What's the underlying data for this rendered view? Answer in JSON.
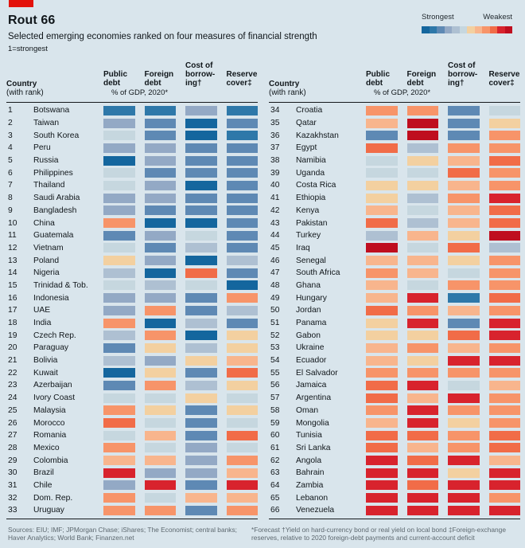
{
  "header": {
    "title": "Rout 66",
    "subtitle": "Selected emerging economies ranked on four measures of financial strength",
    "scale_note": "1=strongest",
    "legend_strong": "Strongest",
    "legend_weak": "Weakest"
  },
  "table_header": {
    "country_label": "Country",
    "country_sub": "(with rank)",
    "col_public": "Public\ndebt",
    "col_foreign": "Foreign\ndebt",
    "col_borrowing": "Cost of\nborrow-\ning†",
    "col_reserve": "Reserve\ncover‡",
    "gdp_note": "% of GDP, 2020*"
  },
  "colors": {
    "background": "#d9e5ec",
    "tab_red": "#e3120b",
    "rule_dark": "#15191c",
    "footer_text": "#5d686f",
    "palette": {
      "b1": "#14669e",
      "b2": "#2e78a9",
      "b3": "#5e89b4",
      "b4": "#93a9c5",
      "b5": "#aec0d2",
      "b6": "#c6d7df",
      "r6": "#f3d0a0",
      "r5": "#f8b58d",
      "r4": "#f79469",
      "r3": "#f16c48",
      "r2": "#d8232d",
      "r1": "#bf0e1f"
    },
    "legend_order": [
      "b1",
      "b2",
      "b3",
      "b4",
      "b5",
      "b6",
      "r6",
      "r5",
      "r4",
      "r3",
      "r2",
      "r1"
    ]
  },
  "chart_data": {
    "type": "heatmap",
    "title": "Rout 66",
    "subtitle": "Selected emerging economies ranked on four measures of financial strength",
    "scale_note": "1=strongest; colors are ordinal strength buckets from b1 (strongest, dark blue) to r1 (weakest, dark red)",
    "measures": [
      "Public debt (% of GDP, 2020*)",
      "Foreign debt (% of GDP, 2020*)",
      "Cost of borrowing†",
      "Reserve cover‡"
    ],
    "rows": [
      {
        "rank": 1,
        "country": "Botswana",
        "cells": [
          "b2",
          "b2",
          "b4",
          "b2"
        ]
      },
      {
        "rank": 2,
        "country": "Taiwan",
        "cells": [
          "b4",
          "b3",
          "b1",
          "b3"
        ]
      },
      {
        "rank": 3,
        "country": "South Korea",
        "cells": [
          "b6",
          "b3",
          "b1",
          "b2"
        ]
      },
      {
        "rank": 4,
        "country": "Peru",
        "cells": [
          "b4",
          "b4",
          "b3",
          "b3"
        ]
      },
      {
        "rank": 5,
        "country": "Russia",
        "cells": [
          "b1",
          "b4",
          "b3",
          "b3"
        ]
      },
      {
        "rank": 6,
        "country": "Philippines",
        "cells": [
          "b6",
          "b3",
          "b3",
          "b3"
        ]
      },
      {
        "rank": 7,
        "country": "Thailand",
        "cells": [
          "b6",
          "b4",
          "b1",
          "b3"
        ]
      },
      {
        "rank": 8,
        "country": "Saudi Arabia",
        "cells": [
          "b4",
          "b4",
          "b3",
          "b3"
        ]
      },
      {
        "rank": 9,
        "country": "Bangladesh",
        "cells": [
          "b4",
          "b3",
          "b3",
          "b3"
        ]
      },
      {
        "rank": 10,
        "country": "China",
        "cells": [
          "r4",
          "b1",
          "b1",
          "b3"
        ]
      },
      {
        "rank": 11,
        "country": "Guatemala",
        "cells": [
          "b3",
          "b4",
          "b6",
          "b3"
        ]
      },
      {
        "rank": 12,
        "country": "Vietnam",
        "cells": [
          "b6",
          "b3",
          "b5",
          "b3"
        ]
      },
      {
        "rank": 13,
        "country": "Poland",
        "cells": [
          "r6",
          "b4",
          "b1",
          "b5"
        ]
      },
      {
        "rank": 14,
        "country": "Nigeria",
        "cells": [
          "b5",
          "b1",
          "r3",
          "b3"
        ]
      },
      {
        "rank": 15,
        "country": "Trinidad & Tob.",
        "cells": [
          "b6",
          "b5",
          "b6",
          "b1"
        ]
      },
      {
        "rank": 16,
        "country": "Indonesia",
        "cells": [
          "b4",
          "b4",
          "b3",
          "r4"
        ]
      },
      {
        "rank": 17,
        "country": "UAE",
        "cells": [
          "b4",
          "r4",
          "b3",
          "b5"
        ]
      },
      {
        "rank": 18,
        "country": "India",
        "cells": [
          "r4",
          "b1",
          "b5",
          "b3"
        ]
      },
      {
        "rank": 19,
        "country": "Czech Rep.",
        "cells": [
          "b5",
          "r4",
          "b1",
          "r6"
        ]
      },
      {
        "rank": 20,
        "country": "Paraguay",
        "cells": [
          "b3",
          "r6",
          "b5",
          "r6"
        ]
      },
      {
        "rank": 21,
        "country": "Bolivia",
        "cells": [
          "b5",
          "b4",
          "r6",
          "r5"
        ]
      },
      {
        "rank": 22,
        "country": "Kuwait",
        "cells": [
          "b1",
          "r6",
          "b3",
          "r3"
        ]
      },
      {
        "rank": 23,
        "country": "Azerbaijan",
        "cells": [
          "b3",
          "r4",
          "b5",
          "r6"
        ]
      },
      {
        "rank": 24,
        "country": "Ivory Coast",
        "cells": [
          "b6",
          "b6",
          "r6",
          "b6"
        ]
      },
      {
        "rank": 25,
        "country": "Malaysia",
        "cells": [
          "r4",
          "r6",
          "b3",
          "r6"
        ]
      },
      {
        "rank": 26,
        "country": "Morocco",
        "cells": [
          "r3",
          "b6",
          "b3",
          "b6"
        ]
      },
      {
        "rank": 27,
        "country": "Romania",
        "cells": [
          "b6",
          "r5",
          "b3",
          "r3"
        ]
      },
      {
        "rank": 28,
        "country": "Mexico",
        "cells": [
          "r4",
          "b6",
          "b4",
          "b6"
        ]
      },
      {
        "rank": 29,
        "country": "Colombia",
        "cells": [
          "r5",
          "r5",
          "b4",
          "r4"
        ]
      },
      {
        "rank": 30,
        "country": "Brazil",
        "cells": [
          "r2",
          "b4",
          "b4",
          "r5"
        ]
      },
      {
        "rank": 31,
        "country": "Chile",
        "cells": [
          "b4",
          "r2",
          "b3",
          "r2"
        ]
      },
      {
        "rank": 32,
        "country": "Dom. Rep.",
        "cells": [
          "r4",
          "b6",
          "r5",
          "r5"
        ]
      },
      {
        "rank": 33,
        "country": "Uruguay",
        "cells": [
          "r4",
          "r4",
          "b3",
          "r4"
        ]
      },
      {
        "rank": 34,
        "country": "Croatia",
        "cells": [
          "r4",
          "r4",
          "b3",
          "b6"
        ]
      },
      {
        "rank": 35,
        "country": "Qatar",
        "cells": [
          "r5",
          "r1",
          "b3",
          "r6"
        ]
      },
      {
        "rank": 36,
        "country": "Kazakhstan",
        "cells": [
          "b3",
          "r1",
          "b3",
          "r4"
        ]
      },
      {
        "rank": 37,
        "country": "Egypt",
        "cells": [
          "r3",
          "b5",
          "r4",
          "r4"
        ]
      },
      {
        "rank": 38,
        "country": "Namibia",
        "cells": [
          "b6",
          "r6",
          "r5",
          "r3"
        ]
      },
      {
        "rank": 39,
        "country": "Uganda",
        "cells": [
          "b6",
          "b6",
          "r3",
          "r4"
        ]
      },
      {
        "rank": 40,
        "country": "Costa Rica",
        "cells": [
          "r6",
          "r6",
          "r5",
          "r4"
        ]
      },
      {
        "rank": 41,
        "country": "Ethiopia",
        "cells": [
          "r6",
          "b5",
          "r4",
          "r2"
        ]
      },
      {
        "rank": 42,
        "country": "Kenya",
        "cells": [
          "r5",
          "b6",
          "r5",
          "r3"
        ]
      },
      {
        "rank": 43,
        "country": "Pakistan",
        "cells": [
          "r3",
          "b5",
          "r5",
          "r3"
        ]
      },
      {
        "rank": 44,
        "country": "Turkey",
        "cells": [
          "b5",
          "r5",
          "r6",
          "r1"
        ]
      },
      {
        "rank": 45,
        "country": "Iraq",
        "cells": [
          "r1",
          "b6",
          "r3",
          "b5"
        ]
      },
      {
        "rank": 46,
        "country": "Senegal",
        "cells": [
          "r5",
          "r5",
          "r6",
          "r4"
        ]
      },
      {
        "rank": 47,
        "country": "South Africa",
        "cells": [
          "r4",
          "r5",
          "b6",
          "r4"
        ]
      },
      {
        "rank": 48,
        "country": "Ghana",
        "cells": [
          "r5",
          "b6",
          "r4",
          "r4"
        ]
      },
      {
        "rank": 49,
        "country": "Hungary",
        "cells": [
          "r5",
          "r2",
          "b2",
          "r3"
        ]
      },
      {
        "rank": 50,
        "country": "Jordan",
        "cells": [
          "r3",
          "r4",
          "r5",
          "r4"
        ]
      },
      {
        "rank": 51,
        "country": "Panama",
        "cells": [
          "r6",
          "r2",
          "b3",
          "r2"
        ]
      },
      {
        "rank": 52,
        "country": "Gabon",
        "cells": [
          "r6",
          "r6",
          "r3",
          "r2"
        ]
      },
      {
        "rank": 53,
        "country": "Ukraine",
        "cells": [
          "r5",
          "r4",
          "r5",
          "r4"
        ]
      },
      {
        "rank": 54,
        "country": "Ecuador",
        "cells": [
          "r5",
          "r6",
          "r2",
          "r2"
        ]
      },
      {
        "rank": 55,
        "country": "El Salvador",
        "cells": [
          "r4",
          "r4",
          "r4",
          "r4"
        ]
      },
      {
        "rank": 56,
        "country": "Jamaica",
        "cells": [
          "r3",
          "r2",
          "b6",
          "r5"
        ]
      },
      {
        "rank": 57,
        "country": "Argentina",
        "cells": [
          "r3",
          "r5",
          "r2",
          "r4"
        ]
      },
      {
        "rank": 58,
        "country": "Oman",
        "cells": [
          "r4",
          "r2",
          "r4",
          "r4"
        ]
      },
      {
        "rank": 59,
        "country": "Mongolia",
        "cells": [
          "r5",
          "r2",
          "r6",
          "r4"
        ]
      },
      {
        "rank": 60,
        "country": "Tunisia",
        "cells": [
          "r3",
          "r3",
          "r4",
          "r3"
        ]
      },
      {
        "rank": 61,
        "country": "Sri Lanka",
        "cells": [
          "r3",
          "r5",
          "r4",
          "r3"
        ]
      },
      {
        "rank": 62,
        "country": "Angola",
        "cells": [
          "r2",
          "r3",
          "r2",
          "r5"
        ]
      },
      {
        "rank": 63,
        "country": "Bahrain",
        "cells": [
          "r2",
          "r2",
          "r6",
          "r2"
        ]
      },
      {
        "rank": 64,
        "country": "Zambia",
        "cells": [
          "r2",
          "r3",
          "r2",
          "r2"
        ]
      },
      {
        "rank": 65,
        "country": "Lebanon",
        "cells": [
          "r2",
          "r2",
          "r2",
          "r4"
        ]
      },
      {
        "rank": 66,
        "country": "Venezuela",
        "cells": [
          "r2",
          "r2",
          "r2",
          "r2"
        ]
      }
    ]
  },
  "footer": {
    "sources": "Sources: EIU; IMF; JPMorgan Chase; iShares; The Economist; central banks; Haver Analytics; World Bank; Finanzen.net",
    "footnotes": "*Forecast    †Yield on hard-currency bond or real yield on local bond    ‡Foreign-exchange reserves, relative to 2020 foreign-debt payments and current-account deficit"
  }
}
